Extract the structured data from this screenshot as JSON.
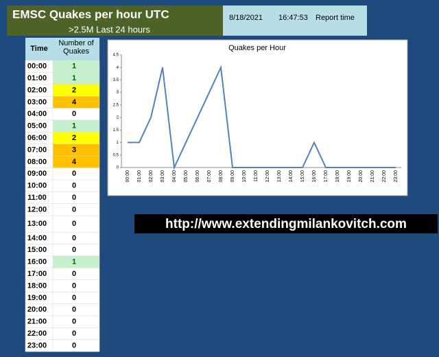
{
  "header": {
    "title": "EMSC Quakes per hour UTC",
    "subtitle": ">2.5M Last 24 hours"
  },
  "report": {
    "date": "8/18/2021",
    "time": "16:47:53",
    "label": "Report time"
  },
  "table": {
    "headers": [
      "Time",
      "Number of Quakes"
    ],
    "rows": [
      {
        "time": "00:00",
        "count": 1,
        "fill": "#c6efce"
      },
      {
        "time": "01:00",
        "count": 1,
        "fill": "#c6efce"
      },
      {
        "time": "02:00",
        "count": 2,
        "fill": "#ffff00"
      },
      {
        "time": "03:00",
        "count": 4,
        "fill": "#ffc000"
      },
      {
        "time": "04:00",
        "count": 0,
        "fill": "#ffffff"
      },
      {
        "time": "05:00",
        "count": 1,
        "fill": "#c6efce"
      },
      {
        "time": "06:00",
        "count": 2,
        "fill": "#ffff00"
      },
      {
        "time": "07:00",
        "count": 3,
        "fill": "#ffc000"
      },
      {
        "time": "08:00",
        "count": 4,
        "fill": "#ffc000"
      },
      {
        "time": "09:00",
        "count": 0,
        "fill": "#ffffff"
      },
      {
        "time": "10:00",
        "count": 0,
        "fill": "#ffffff"
      },
      {
        "time": "11:00",
        "count": 0,
        "fill": "#ffffff"
      },
      {
        "time": "12:00",
        "count": 0,
        "fill": "#ffffff"
      },
      {
        "time": "13:00",
        "count": 0,
        "fill": "#ffffff"
      },
      {
        "time": "14:00",
        "count": 0,
        "fill": "#ffffff"
      },
      {
        "time": "15:00",
        "count": 0,
        "fill": "#ffffff"
      },
      {
        "time": "16:00",
        "count": 1,
        "fill": "#c6efce"
      },
      {
        "time": "17:00",
        "count": 0,
        "fill": "#ffffff"
      },
      {
        "time": "18:00",
        "count": 0,
        "fill": "#ffffff"
      },
      {
        "time": "19:00",
        "count": 0,
        "fill": "#ffffff"
      },
      {
        "time": "20:00",
        "count": 0,
        "fill": "#ffffff"
      },
      {
        "time": "21:00",
        "count": 0,
        "fill": "#ffffff"
      },
      {
        "time": "22:00",
        "count": 0,
        "fill": "#ffffff"
      },
      {
        "time": "23:00",
        "count": 0,
        "fill": "#ffffff"
      }
    ]
  },
  "url": "http://www.extendingmilankovitch.com",
  "chart_data": {
    "type": "line",
    "title": "Quakes per Hour",
    "categories": [
      "00:00",
      "01:00",
      "02:00",
      "03:00",
      "04:00",
      "05:00",
      "06:00",
      "07:00",
      "08:00",
      "09:00",
      "10:00",
      "11:00",
      "12:00",
      "13:00",
      "14:00",
      "15:00",
      "16:00",
      "17:00",
      "18:00",
      "19:00",
      "20:00",
      "21:00",
      "22:00",
      "23:00"
    ],
    "values": [
      1,
      1,
      2,
      4,
      0,
      1,
      2,
      3,
      4,
      0,
      0,
      0,
      0,
      0,
      0,
      0,
      1,
      0,
      0,
      0,
      0,
      0,
      0,
      0
    ],
    "color": "#4f81bd",
    "ylim": [
      0,
      4.5
    ],
    "yticks": [
      0,
      0.5,
      1,
      1.5,
      2,
      2.5,
      3,
      3.5,
      4,
      4.5
    ],
    "grid": false
  }
}
